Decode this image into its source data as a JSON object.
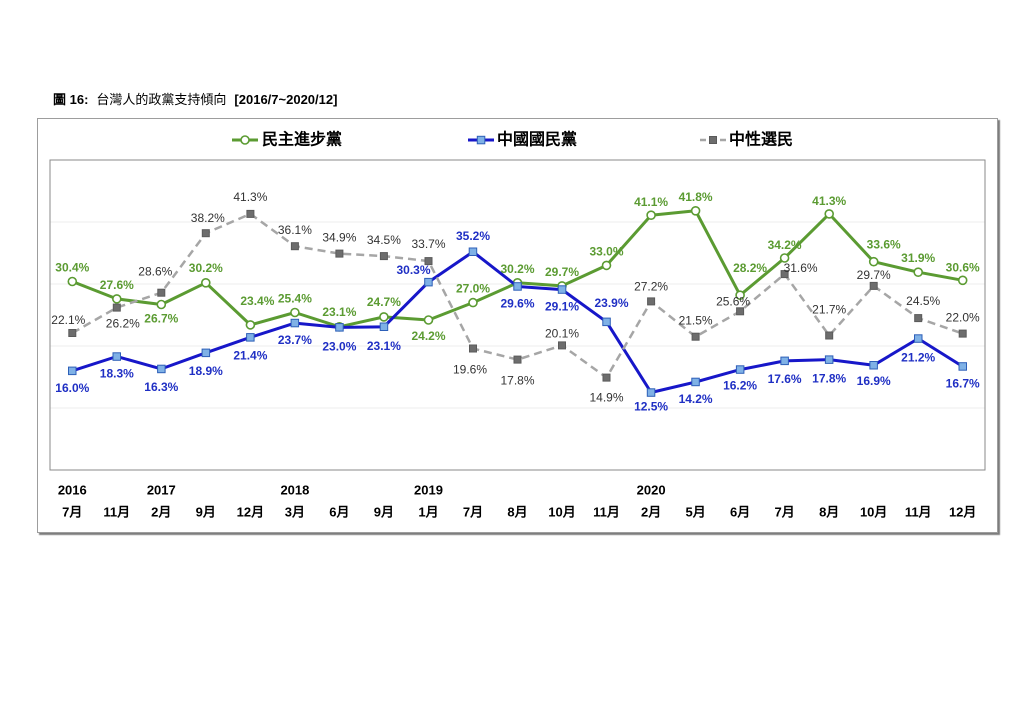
{
  "chart_data": {
    "type": "line",
    "figure_number": "圖 16:",
    "title": "台灣人的政黨支持傾向",
    "subtitle": "[2016/7~2020/12]",
    "categories": [
      "7月",
      "11月",
      "2月",
      "9月",
      "12月",
      "3月",
      "6月",
      "9月",
      "1月",
      "7月",
      "8月",
      "10月",
      "11月",
      "2月",
      "5月",
      "6月",
      "7月",
      "8月",
      "10月",
      "11月",
      "12月"
    ],
    "year_labels": [
      "2016",
      "",
      "2017",
      "",
      "",
      "2018",
      "",
      "",
      "2019",
      "",
      "",
      "",
      "",
      "2020",
      "",
      "",
      "",
      "",
      "",
      "",
      ""
    ],
    "ylim": [
      0,
      50
    ],
    "grid": true,
    "legend_position": "top",
    "label_suffix": "%",
    "series": [
      {
        "name": "民主進步黨",
        "color": "#5b9b32",
        "marker_fill": "#ffffff",
        "label_color": "#5b9b32",
        "values": [
          30.4,
          27.6,
          26.7,
          30.2,
          23.4,
          25.4,
          23.1,
          24.7,
          24.2,
          27.0,
          30.2,
          29.7,
          33.0,
          41.1,
          41.8,
          28.2,
          34.2,
          41.3,
          33.6,
          31.9,
          30.6
        ]
      },
      {
        "name": "中國國民黨",
        "color": "#1717c9",
        "marker_fill": "#7fb1e6",
        "label_color": "#1f2fc4",
        "values": [
          16.0,
          18.3,
          16.3,
          18.9,
          21.4,
          23.7,
          23.0,
          23.1,
          30.3,
          35.2,
          29.6,
          29.1,
          23.9,
          12.5,
          14.2,
          16.2,
          17.6,
          17.8,
          16.9,
          21.2,
          16.7
        ]
      },
      {
        "name": "中性選民",
        "color": "#a6a6a6",
        "marker_fill": "#6d6d6d",
        "label_color": "#333333",
        "values": [
          22.1,
          26.2,
          28.6,
          38.2,
          41.3,
          36.1,
          34.9,
          34.5,
          33.7,
          19.6,
          17.8,
          20.1,
          14.9,
          27.2,
          21.5,
          25.6,
          31.6,
          21.7,
          29.7,
          24.5,
          22.0
        ]
      }
    ]
  }
}
